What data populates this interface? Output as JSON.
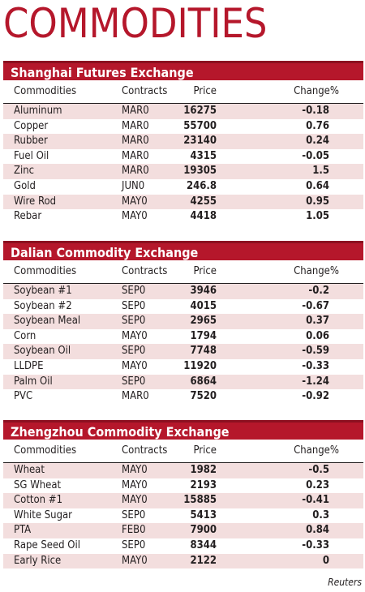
{
  "title": "COMMODITIES",
  "columns": {
    "commodities": "Commodities",
    "contracts": "Contracts",
    "price": "Price",
    "change": "Change%"
  },
  "sections": [
    {
      "name": "Shanghai Futures Exchange",
      "rows": [
        {
          "commodity": "Aluminum",
          "contract": "MAR0",
          "price": "16275",
          "change": "-0.18"
        },
        {
          "commodity": "Copper",
          "contract": "MAR0",
          "price": "55700",
          "change": "0.76"
        },
        {
          "commodity": "Rubber",
          "contract": "MAR0",
          "price": "23140",
          "change": "0.24"
        },
        {
          "commodity": "Fuel Oil",
          "contract": "MAR0",
          "price": "4315",
          "change": "-0.05"
        },
        {
          "commodity": "Zinc",
          "contract": "MAR0",
          "price": "19305",
          "change": "1.5"
        },
        {
          "commodity": "Gold",
          "contract": "JUN0",
          "price": "246.8",
          "change": "0.64"
        },
        {
          "commodity": "Wire Rod",
          "contract": "MAY0",
          "price": "4255",
          "change": "0.95"
        },
        {
          "commodity": "Rebar",
          "contract": "MAY0",
          "price": "4418",
          "change": "1.05"
        }
      ]
    },
    {
      "name": "Dalian Commodity Exchange",
      "rows": [
        {
          "commodity": "Soybean #1",
          "contract": "SEP0",
          "price": "3946",
          "change": "-0.2"
        },
        {
          "commodity": "Soybean #2",
          "contract": "SEP0",
          "price": "4015",
          "change": "-0.67"
        },
        {
          "commodity": "Soybean Meal",
          "contract": "SEP0",
          "price": "2965",
          "change": "0.37"
        },
        {
          "commodity": "Corn",
          "contract": "MAY0",
          "price": "1794",
          "change": "0.06"
        },
        {
          "commodity": "Soybean Oil",
          "contract": "SEP0",
          "price": "7748",
          "change": "-0.59"
        },
        {
          "commodity": "LLDPE",
          "contract": "MAY0",
          "price": "11920",
          "change": "-0.33"
        },
        {
          "commodity": "Palm Oil",
          "contract": "SEP0",
          "price": "6864",
          "change": "-1.24"
        },
        {
          "commodity": "PVC",
          "contract": "MAR0",
          "price": "7520",
          "change": "-0.92"
        }
      ]
    },
    {
      "name": "Zhengzhou Commodity Exchange",
      "rows": [
        {
          "commodity": "Wheat",
          "contract": "MAY0",
          "price": "1982",
          "change": "-0.5"
        },
        {
          "commodity": "SG Wheat",
          "contract": "MAY0",
          "price": "2193",
          "change": "0.23"
        },
        {
          "commodity": "Cotton #1",
          "contract": "MAY0",
          "price": "15885",
          "change": "-0.41"
        },
        {
          "commodity": "White Sugar",
          "contract": "SEP0",
          "price": "5413",
          "change": "0.3"
        },
        {
          "commodity": "PTA",
          "contract": "FEB0",
          "price": "7900",
          "change": "0.84"
        },
        {
          "commodity": "Rape Seed Oil",
          "contract": "SEP0",
          "price": "8344",
          "change": "-0.33"
        },
        {
          "commodity": "Early Rice",
          "contract": "MAY0",
          "price": "2122",
          "change": "0"
        }
      ]
    }
  ],
  "credit": "Reuters"
}
